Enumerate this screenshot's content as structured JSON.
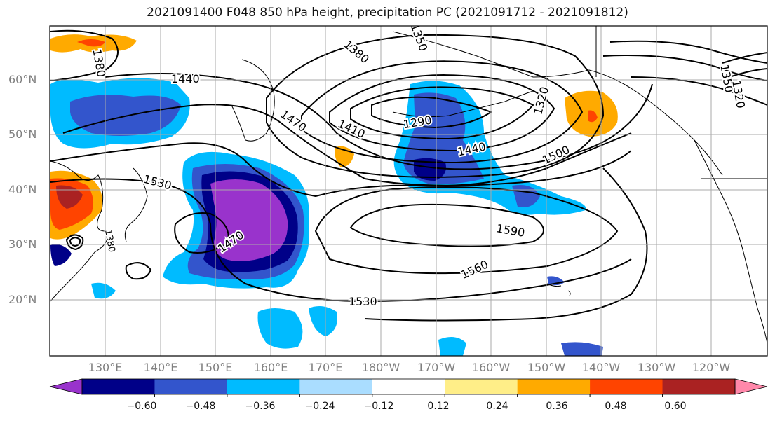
{
  "title": "2021091400 F048 850 hPa height, precipitation PC (2021091712 - 2021091812)",
  "lat_labels": [
    "60°N",
    "50°N",
    "40°N",
    "30°N",
    "20°N"
  ],
  "lon_labels": [
    "130°E",
    "140°E",
    "150°E",
    "160°E",
    "170°E",
    "180°W",
    "170°W",
    "160°W",
    "150°W",
    "140°W",
    "130°W",
    "120°W"
  ],
  "contour_labels": [
    "1380",
    "1440",
    "1470",
    "1530",
    "1470",
    "1410",
    "1380",
    "1350",
    "1290",
    "1440",
    "1320",
    "1500",
    "1590",
    "1560",
    "1530",
    "1350",
    "1320",
    "1380"
  ],
  "colorbar": {
    "colors": [
      "#9933cc",
      "#000088",
      "#3355cc",
      "#00bbff",
      "#aaddff",
      "#ffffff",
      "#ffee88",
      "#ffaa00",
      "#ff4400",
      "#aa2222",
      "#ff88aa"
    ],
    "labels": [
      "−0.60",
      "−0.48",
      "−0.36",
      "−0.24",
      "−0.12",
      "0.12",
      "0.24",
      "0.36",
      "0.48",
      "0.60"
    ]
  },
  "colors": {
    "land_outline": "#000000",
    "contour": "#000000",
    "grid": "#aaaaaa",
    "axis_label": "#808080"
  }
}
